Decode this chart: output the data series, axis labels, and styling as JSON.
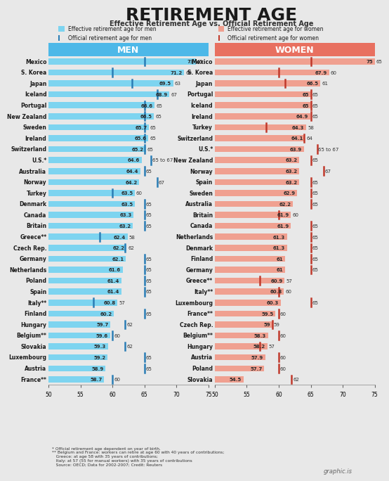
{
  "title": "RETIREMENT AGE",
  "subtitle": "Effective Retirement Age vs. Official Retirement Age",
  "background_color": "#e8e8e8",
  "header_men_color": "#4db8e8",
  "header_women_color": "#e87060",
  "men_bar_color": "#7dd4f0",
  "men_official_color": "#2a7db5",
  "women_bar_color": "#f0a090",
  "women_official_color": "#c0392b",
  "men": {
    "countries": [
      "Mexico",
      "S. Korea",
      "Japan",
      "Iceland",
      "Portugal",
      "New Zealand",
      "Sweden",
      "Ireland",
      "Switzerland",
      "U.S.*",
      "Australia",
      "Norway",
      "Turkey",
      "Denmark",
      "Canada",
      "Britain",
      "Greece**",
      "Czech Rep.",
      "Germany",
      "Netherlands",
      "Poland",
      "Spain",
      "Italy**",
      "Finland",
      "Hungary",
      "Belgium**",
      "Slovakia",
      "Luxembourg",
      "Austria",
      "France**"
    ],
    "effective": [
      73,
      71.2,
      69.5,
      68.9,
      66.6,
      66.5,
      65.7,
      65.6,
      65.2,
      64.6,
      64.4,
      64.2,
      63.5,
      63.5,
      63.3,
      63.2,
      62.4,
      62.2,
      62.1,
      61.6,
      61.4,
      61.4,
      60.8,
      60.2,
      59.7,
      59.6,
      59.3,
      59.2,
      58.9,
      58.7
    ],
    "official": [
      65,
      60,
      63,
      67,
      65,
      65,
      65,
      65,
      65,
      66,
      65,
      67,
      60,
      65,
      65,
      65,
      58,
      62,
      65,
      65,
      65,
      65,
      57,
      65,
      62,
      60,
      62,
      65,
      65,
      60
    ],
    "official_label": [
      "65",
      "60",
      "63",
      "67",
      "65",
      "65",
      "65",
      "65",
      "65",
      "65 to 67",
      "65",
      "67",
      "60",
      "65",
      "65",
      "65",
      "58",
      "62",
      "65",
      "65",
      "65",
      "65",
      "57",
      "65",
      "62",
      "60",
      "62",
      "65",
      "65",
      "60"
    ]
  },
  "women": {
    "countries": [
      "Mexico",
      "S. Korea",
      "Japan",
      "Portugal",
      "Iceland",
      "Ireland",
      "Turkey",
      "Switzerland",
      "U.S.*",
      "New Zealand",
      "Norway",
      "Spain",
      "Sweden",
      "Australia",
      "Britain",
      "Canada",
      "Netherlands",
      "Denmark",
      "Finland",
      "Germany",
      "Greece**",
      "Italy**",
      "Luxembourg",
      "France**",
      "Czech Rep.",
      "Belgium**",
      "Hungary",
      "Austria",
      "Poland",
      "Slovakia"
    ],
    "effective": [
      75,
      67.9,
      66.5,
      65,
      65,
      64.9,
      64.3,
      64.1,
      63.9,
      63.2,
      63.2,
      63.2,
      62.9,
      62.2,
      61.9,
      61.9,
      61.3,
      61.3,
      61,
      61,
      60.9,
      60.8,
      60.3,
      59.5,
      59,
      58.3,
      58.2,
      57.9,
      57.7,
      54.5
    ],
    "official": [
      65,
      60,
      61,
      65,
      65,
      65,
      58,
      64,
      66,
      65,
      67,
      65,
      65,
      65,
      60,
      65,
      65,
      65,
      65,
      65,
      57,
      60,
      65,
      60,
      59,
      60,
      57,
      60,
      60,
      62
    ],
    "official_label": [
      "65",
      "60",
      "61",
      "65",
      "65",
      "65",
      "58",
      "64",
      "65 to 67",
      "65",
      "67",
      "65",
      "65",
      "65",
      "60",
      "65",
      "65",
      "65",
      "65",
      "65",
      "57",
      "60",
      "65",
      "60",
      "59",
      "60",
      "57",
      "60",
      "60",
      "62"
    ]
  },
  "xmin": 50,
  "xmax": 75,
  "xticks": [
    50,
    55,
    60,
    65,
    70,
    75
  ],
  "footnote": "* Official retirement age dependent on year of birth.\n** Belgium and France: workers can retire at age 60 with 40 years of contributions;\n   Greece: at age 58 with 35 years of contributions;\n   Italy: at 57 (55 for manual workers) with 35 years of contributions\n   Source: OECD; Data for 2002-2007; Credit: Reuters"
}
